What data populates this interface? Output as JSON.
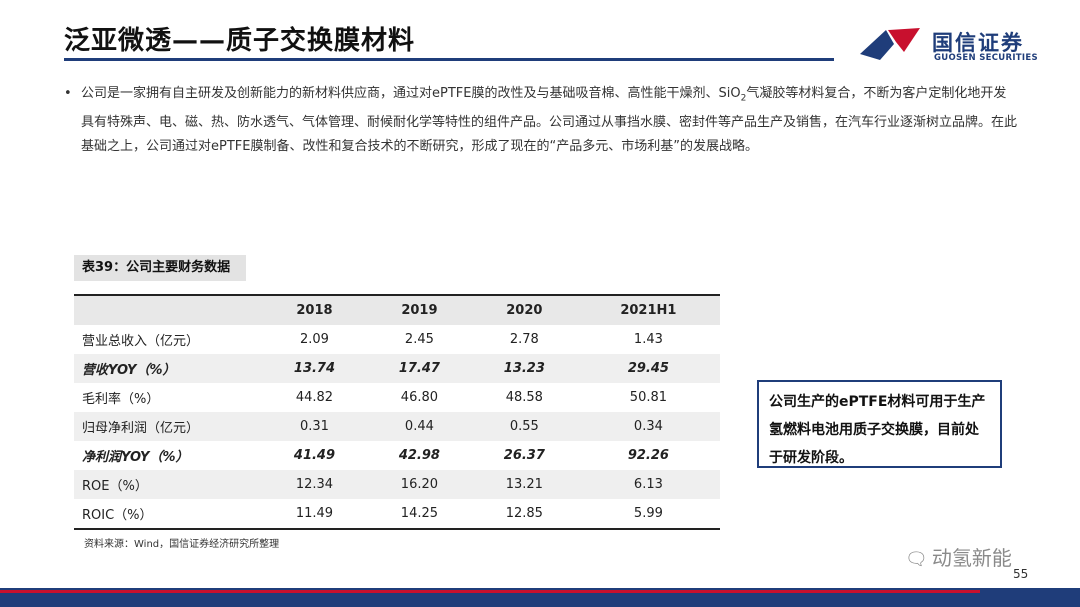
{
  "header": {
    "title": "泛亚微透——质子交换膜材料",
    "logo_cn": "国信证券",
    "logo_en": "GUOSEN SECURITIES"
  },
  "intro": {
    "bullet": "•",
    "before_sub": "公司是一家拥有自主研发及创新能力的新材料供应商，通过对ePTFE膜的改性及与基础吸音棉、高性能干燥剂、SiO",
    "sub": "2",
    "after_sub": "气凝胶等材料复合，不断为客户定制化地开发具有特殊声、电、磁、热、防水透气、气体管理、耐候耐化学等特性的组件产品。公司通过从事挡水膜、密封件等产品生产及销售，在汽车行业逐渐树立品牌。在此基础之上，公司通过对ePTFE膜制备、改性和复合技术的不断研究，形成了现在的“产品多元、市场利基”的发展战略。"
  },
  "table": {
    "caption": "表39：公司主要财务数据",
    "columns": [
      "2018",
      "2019",
      "2020",
      "2021H1"
    ],
    "rows": [
      {
        "label": "营业总收入（亿元）",
        "values": [
          "2.09",
          "2.45",
          "2.78",
          "1.43"
        ]
      },
      {
        "label": "营收YOY（%）",
        "values": [
          "13.74",
          "17.47",
          "13.23",
          "29.45"
        ]
      },
      {
        "label": "毛利率（%）",
        "values": [
          "44.82",
          "46.80",
          "48.58",
          "50.81"
        ]
      },
      {
        "label": "归母净利润（亿元）",
        "values": [
          "0.31",
          "0.44",
          "0.55",
          "0.34"
        ]
      },
      {
        "label": "净利润YOY（%）",
        "values": [
          "41.49",
          "42.98",
          "26.37",
          "92.26"
        ]
      },
      {
        "label": "ROE（%）",
        "values": [
          "12.34",
          "16.20",
          "13.21",
          "6.13"
        ]
      },
      {
        "label": "ROIC（%）",
        "values": [
          "11.49",
          "14.25",
          "12.85",
          "5.99"
        ]
      }
    ],
    "source": "资料来源：Wind，国信证券经济研究所整理"
  },
  "callout": {
    "text": "公司生产的ePTFE材料可用于生产氢燃料电池用质子交换膜，目前处于研发阶段。"
  },
  "watermark": {
    "icon": "wechat-icon",
    "text": "动氢新能"
  },
  "page_number": "55",
  "colors": {
    "brand_blue": "#1f3d7a",
    "brand_red": "#c8102e"
  }
}
